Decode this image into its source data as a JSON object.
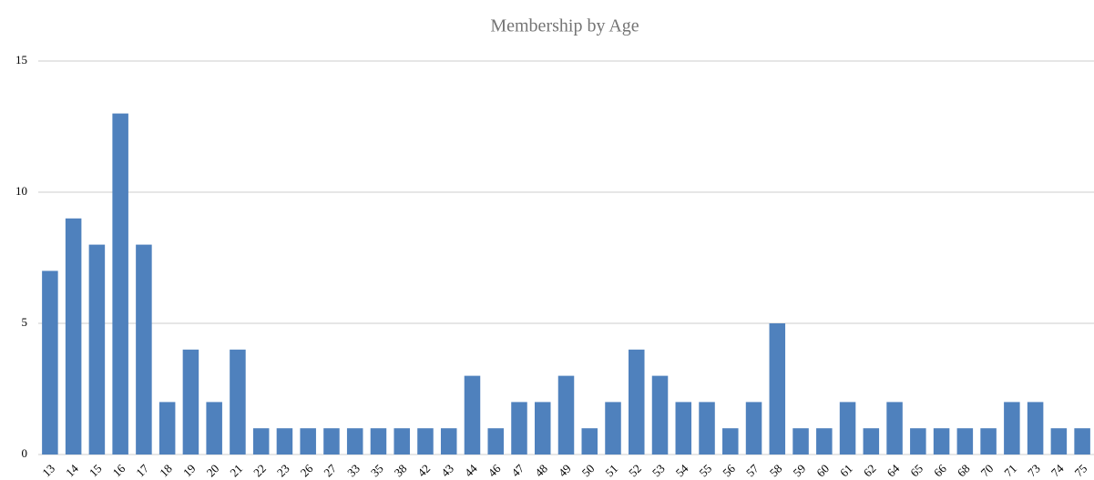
{
  "chart_data": {
    "type": "bar",
    "title": "Membership by Age",
    "categories": [
      "13",
      "14",
      "15",
      "16",
      "17",
      "18",
      "19",
      "20",
      "21",
      "22",
      "23",
      "26",
      "27",
      "33",
      "35",
      "38",
      "42",
      "43",
      "44",
      "46",
      "47",
      "48",
      "49",
      "50",
      "51",
      "52",
      "53",
      "54",
      "55",
      "56",
      "57",
      "58",
      "59",
      "60",
      "61",
      "62",
      "64",
      "65",
      "66",
      "68",
      "70",
      "71",
      "73",
      "74",
      "75"
    ],
    "values": [
      7,
      9,
      8,
      13,
      8,
      2,
      4,
      2,
      4,
      1,
      1,
      1,
      1,
      1,
      1,
      1,
      1,
      1,
      3,
      1,
      2,
      2,
      3,
      1,
      2,
      4,
      3,
      2,
      2,
      1,
      2,
      5,
      1,
      1,
      2,
      1,
      2,
      1,
      1,
      1,
      1,
      2,
      2,
      1,
      1
    ],
    "color": "#4f81bd",
    "ylim": [
      0,
      15
    ],
    "yticks": [
      0,
      5,
      10,
      15
    ],
    "grid": true
  }
}
